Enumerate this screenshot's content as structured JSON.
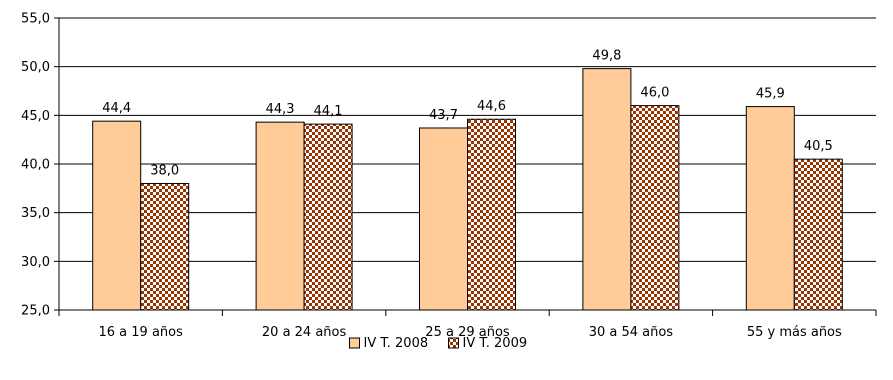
{
  "chart_data": {
    "type": "bar",
    "categories": [
      "16 a 19 años",
      "20 a 24 años",
      "25 a 29 años",
      "30 a 54 años",
      "55 y más años"
    ],
    "series": [
      {
        "name": "IV T. 2008",
        "values": [
          44.4,
          44.3,
          43.7,
          49.8,
          45.9
        ],
        "labels": [
          "44,4",
          "44,3",
          "43,7",
          "49,8",
          "45,9"
        ]
      },
      {
        "name": "IV T. 2009",
        "values": [
          38.0,
          44.1,
          44.6,
          46.0,
          40.5
        ],
        "labels": [
          "38,0",
          "44,1",
          "44,6",
          "46,0",
          "40,5"
        ]
      }
    ],
    "ylim": [
      25,
      55
    ],
    "yticks": [
      25,
      30,
      35,
      40,
      45,
      50,
      55
    ],
    "ytick_labels": [
      "25,0",
      "30,0",
      "35,0",
      "40,0",
      "45,0",
      "50,0",
      "55,0"
    ],
    "grid": true,
    "legend": "bottom-center",
    "colors": {
      "series1_fill": "#FFCC99",
      "series2_fill": "#993300",
      "series2_bg": "#FFFFFF",
      "border": "#000000",
      "grid": "#000000"
    }
  }
}
